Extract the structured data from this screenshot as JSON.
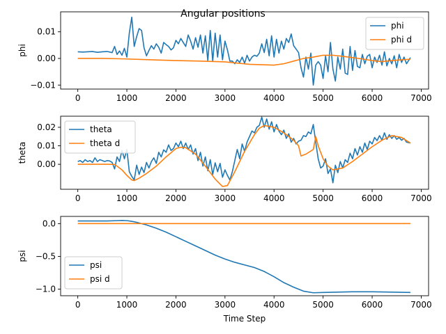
{
  "title": "Angular positions",
  "xlabel": "Time Step",
  "colors": {
    "blue": "#1f77b4",
    "orange": "#ff7f0e"
  },
  "chart_data": [
    {
      "type": "line",
      "ylabel": "phi",
      "xlim": [
        -350,
        7150
      ],
      "ylim": [
        -0.0115,
        0.0175
      ],
      "xticks": [
        0,
        1000,
        2000,
        3000,
        4000,
        5000,
        6000,
        7000
      ],
      "yticks": [
        -0.01,
        0.0,
        0.01
      ],
      "ytick_labels": [
        "−0.01",
        "0.00",
        "0.01"
      ],
      "legend_position": "top-right",
      "series": [
        {
          "name": "phi",
          "color": "#1f77b4",
          "x": [
            0,
            100,
            200,
            300,
            400,
            500,
            600,
            700,
            750,
            800,
            850,
            900,
            950,
            1000,
            1050,
            1100,
            1150,
            1200,
            1250,
            1300,
            1350,
            1400,
            1450,
            1500,
            1550,
            1600,
            1650,
            1700,
            1750,
            1800,
            1850,
            1900,
            1950,
            2000,
            2050,
            2100,
            2150,
            2200,
            2250,
            2300,
            2350,
            2400,
            2450,
            2500,
            2550,
            2600,
            2650,
            2700,
            2750,
            2800,
            2850,
            2900,
            2950,
            3000,
            3050,
            3100,
            3150,
            3200,
            3250,
            3300,
            3350,
            3400,
            3450,
            3500,
            3550,
            3600,
            3650,
            3700,
            3750,
            3800,
            3850,
            3900,
            3950,
            4000,
            4050,
            4100,
            4150,
            4200,
            4250,
            4300,
            4350,
            4400,
            4450,
            4500,
            4550,
            4600,
            4650,
            4700,
            4750,
            4800,
            4850,
            4900,
            4950,
            5000,
            5050,
            5100,
            5150,
            5200,
            5250,
            5300,
            5350,
            5400,
            5450,
            5500,
            5550,
            5600,
            5650,
            5700,
            5750,
            5800,
            5850,
            5900,
            5950,
            6000,
            6050,
            6100,
            6150,
            6200,
            6250,
            6300,
            6350,
            6400,
            6450,
            6500,
            6550,
            6600,
            6650,
            6700,
            6780
          ],
          "y": [
            0.0025,
            0.0024,
            0.0025,
            0.0026,
            0.0023,
            0.0025,
            0.0026,
            0.0022,
            0.0045,
            0.0015,
            0.0028,
            0.0012,
            0.0038,
            0.0005,
            0.0095,
            0.0155,
            0.0045,
            0.0082,
            0.0112,
            0.0105,
            0.004,
            0.001,
            0.003,
            0.0048,
            0.0035,
            0.0055,
            0.0042,
            0.002,
            0.006,
            0.0052,
            0.0045,
            0.0032,
            0.004,
            0.0068,
            0.0055,
            0.0075,
            0.006,
            0.0045,
            0.0088,
            0.0065,
            0.0035,
            0.0078,
            0.0042,
            0.0088,
            0.002,
            0.0085,
            -0.0008,
            0.0105,
            -0.001,
            0.0095,
            0.0005,
            0.0088,
            -0.0005,
            0.0065,
            0.0032,
            -0.001,
            -0.001,
            -0.002,
            -0.0005,
            -0.0015,
            0.0005,
            -0.0018,
            0.0012,
            -0.001,
            0.0005,
            0.0012,
            0.0008,
            0.002,
            0.0055,
            0.0022,
            0.0072,
            0.001,
            0.0085,
            0.0005,
            0.0072,
            0.002,
            0.0065,
            0.0035,
            0.0075,
            0.006,
            0.0092,
            0.0048,
            0.0035,
            0.0022,
            -0.0035,
            -0.007,
            0.0005,
            -0.004,
            0.002,
            -0.01,
            -0.0025,
            -0.0012,
            -0.0025,
            -0.0075,
            0.001,
            -0.005,
            0.006,
            -0.004,
            -0.0085,
            0.0005,
            -0.004,
            0.0035,
            -0.0055,
            -0.006,
            0.0045,
            -0.0045,
            0.003,
            -0.003,
            -0.0035,
            0.0015,
            -0.002,
            0.0008,
            0.0015,
            -0.0035,
            0.0005,
            -0.0015,
            0.0012,
            -0.0025,
            0.0025,
            -0.0028,
            0.0,
            -0.002,
            0.001,
            -0.0035,
            0.0015,
            -0.0015,
            0.0005,
            -0.002,
            0.0003
          ]
        },
        {
          "name": "phi d",
          "color": "#ff7f0e",
          "x": [
            0,
            500,
            800,
            1000,
            1500,
            2000,
            2500,
            3000,
            3500,
            4000,
            4200,
            4400,
            4500,
            4600,
            4800,
            5000,
            5200,
            5400,
            5600,
            5800,
            6000,
            6200,
            6400,
            6600,
            6780
          ],
          "y": [
            0.0,
            0.0,
            -0.0001,
            -0.0002,
            -0.0005,
            -0.0008,
            -0.001,
            -0.0013,
            -0.0022,
            -0.0025,
            -0.002,
            -0.001,
            -0.0005,
            0.0,
            0.0005,
            0.0012,
            0.0012,
            0.0008,
            0.0003,
            -0.0002,
            -0.0008,
            -0.0012,
            -0.0008,
            -0.0005,
            -0.0003
          ]
        }
      ]
    },
    {
      "type": "line",
      "ylabel": "theta",
      "xlim": [
        -350,
        7150
      ],
      "ylim": [
        -0.0135,
        0.026
      ],
      "xticks": [
        0,
        1000,
        2000,
        3000,
        4000,
        5000,
        6000,
        7000
      ],
      "yticks": [
        0.0,
        0.01,
        0.02
      ],
      "ytick_labels": [
        "0.00",
        "0.01",
        "0.02"
      ],
      "legend_position": "top-left",
      "series": [
        {
          "name": "theta",
          "color": "#1f77b4",
          "x": [
            0,
            50,
            100,
            150,
            200,
            250,
            300,
            350,
            400,
            450,
            500,
            550,
            600,
            650,
            700,
            750,
            800,
            850,
            900,
            950,
            1000,
            1050,
            1100,
            1150,
            1200,
            1250,
            1300,
            1350,
            1400,
            1450,
            1500,
            1550,
            1600,
            1650,
            1700,
            1750,
            1800,
            1850,
            1900,
            1950,
            2000,
            2050,
            2100,
            2150,
            2200,
            2250,
            2300,
            2350,
            2400,
            2450,
            2500,
            2550,
            2600,
            2650,
            2700,
            2750,
            2800,
            2850,
            2900,
            2950,
            3000,
            3050,
            3100,
            3150,
            3200,
            3250,
            3300,
            3350,
            3400,
            3450,
            3500,
            3550,
            3600,
            3650,
            3700,
            3750,
            3800,
            3850,
            3900,
            3950,
            4000,
            4050,
            4100,
            4150,
            4200,
            4250,
            4300,
            4350,
            4400,
            4450,
            4500,
            4550,
            4600,
            4650,
            4700,
            4750,
            4800,
            4850,
            4900,
            4950,
            5000,
            5050,
            5100,
            5150,
            5200,
            5250,
            5300,
            5350,
            5400,
            5450,
            5500,
            5550,
            5600,
            5650,
            5700,
            5750,
            5800,
            5850,
            5900,
            5950,
            6000,
            6050,
            6100,
            6150,
            6200,
            6250,
            6300,
            6350,
            6400,
            6450,
            6500,
            6550,
            6600,
            6650,
            6700,
            6780
          ],
          "y": [
            0.0015,
            0.002,
            0.001,
            0.0025,
            0.0015,
            0.002,
            0.001,
            0.0035,
            0.0015,
            0.0025,
            0.002,
            0.0015,
            0.002,
            0.0018,
            0.001,
            -0.0025,
            0.004,
            0.0015,
            0.0075,
            0.003,
            0.008,
            -0.004,
            -0.0065,
            -0.0085,
            -0.0005,
            -0.0055,
            -0.0015,
            -0.0045,
            0.001,
            -0.002,
            0.0015,
            0.0035,
            0.0005,
            0.0065,
            0.004,
            0.0078,
            0.0065,
            0.0105,
            0.0075,
            0.0085,
            0.0115,
            0.0095,
            0.0125,
            0.0085,
            0.0115,
            0.008,
            0.0105,
            0.0055,
            0.0085,
            0.002,
            0.0065,
            -0.001,
            0.004,
            -0.0035,
            0.0025,
            -0.0055,
            0.0008,
            -0.004,
            0.0005,
            -0.007,
            -0.003,
            -0.006,
            -0.0085,
            -0.004,
            0.002,
            0.008,
            0.003,
            0.011,
            0.007,
            0.012,
            0.015,
            0.018,
            0.017,
            0.02,
            0.021,
            0.0255,
            0.02,
            0.0245,
            0.019,
            0.023,
            0.0175,
            0.0215,
            0.018,
            0.016,
            0.0185,
            0.014,
            0.0165,
            0.012,
            0.014,
            0.011,
            0.0125,
            0.013,
            0.0155,
            0.015,
            0.0175,
            0.0165,
            0.0215,
            0.012,
            0.003,
            -0.002,
            -0.001,
            0.003,
            -0.005,
            -0.0025,
            -0.01,
            -0.0005,
            -0.0045,
            0.0015,
            -0.002,
            0.0025,
            0.001,
            0.006,
            0.003,
            0.0085,
            0.005,
            0.0095,
            0.0065,
            0.0115,
            0.008,
            0.0125,
            0.011,
            0.0145,
            0.0128,
            0.0155,
            0.013,
            0.017,
            0.0135,
            0.016,
            0.014,
            0.0155,
            0.0135,
            0.0145,
            0.013,
            0.014,
            0.012,
            0.0115
          ]
        },
        {
          "name": "theta d",
          "color": "#ff7f0e",
          "x": [
            0,
            300,
            600,
            750,
            800,
            900,
            1000,
            1100,
            1150,
            1250,
            1400,
            1600,
            1800,
            2000,
            2100,
            2200,
            2400,
            2600,
            2800,
            2950,
            3050,
            3100,
            3200,
            3400,
            3600,
            3700,
            3800,
            4000,
            4200,
            4400,
            4500,
            4550,
            4650,
            4800,
            4850,
            4900,
            5000,
            5100,
            5200,
            5400,
            5600,
            5800,
            6000,
            6200,
            6400,
            6600,
            6780
          ],
          "y": [
            0.0,
            0.0,
            0.0,
            -0.0001,
            -0.001,
            -0.003,
            -0.006,
            -0.0085,
            -0.0088,
            -0.0075,
            -0.005,
            -0.001,
            0.004,
            0.0085,
            0.0092,
            0.009,
            0.0055,
            -0.001,
            -0.008,
            -0.012,
            -0.0115,
            -0.009,
            -0.004,
            0.007,
            0.016,
            0.0195,
            0.021,
            0.02,
            0.017,
            0.013,
            0.01,
            0.0045,
            0.0055,
            0.008,
            0.015,
            0.01,
            0.003,
            -0.001,
            -0.003,
            -0.002,
            0.0015,
            0.0055,
            0.0095,
            0.013,
            0.0155,
            0.0145,
            0.0115
          ]
        }
      ]
    },
    {
      "type": "line",
      "ylabel": "psi",
      "xlabel": "Time Step",
      "xlim": [
        -350,
        7150
      ],
      "ylim": [
        -1.1,
        0.11
      ],
      "xticks": [
        0,
        1000,
        2000,
        3000,
        4000,
        5000,
        6000,
        7000
      ],
      "yticks": [
        -1.0,
        -0.5,
        0.0
      ],
      "ytick_labels": [
        "−1.0",
        "−0.5",
        "0.0"
      ],
      "legend_position": "lower-left",
      "series": [
        {
          "name": "psi",
          "color": "#1f77b4",
          "x": [
            0,
            300,
            600,
            800,
            900,
            1000,
            1100,
            1200,
            1400,
            1600,
            1800,
            2000,
            2200,
            2400,
            2600,
            2800,
            3000,
            3200,
            3400,
            3600,
            3800,
            4000,
            4200,
            4400,
            4600,
            4800,
            5000,
            5300,
            5600,
            6000,
            6400,
            6780
          ],
          "y": [
            0.04,
            0.04,
            0.04,
            0.045,
            0.048,
            0.045,
            0.035,
            0.02,
            -0.02,
            -0.07,
            -0.13,
            -0.2,
            -0.27,
            -0.34,
            -0.41,
            -0.48,
            -0.54,
            -0.59,
            -0.63,
            -0.67,
            -0.73,
            -0.81,
            -0.9,
            -0.97,
            -1.03,
            -1.055,
            -1.05,
            -1.045,
            -1.04,
            -1.04,
            -1.045,
            -1.05
          ]
        },
        {
          "name": "psi d",
          "color": "#ff7f0e",
          "x": [
            0,
            6780
          ],
          "y": [
            0.0,
            0.0
          ]
        }
      ]
    }
  ]
}
